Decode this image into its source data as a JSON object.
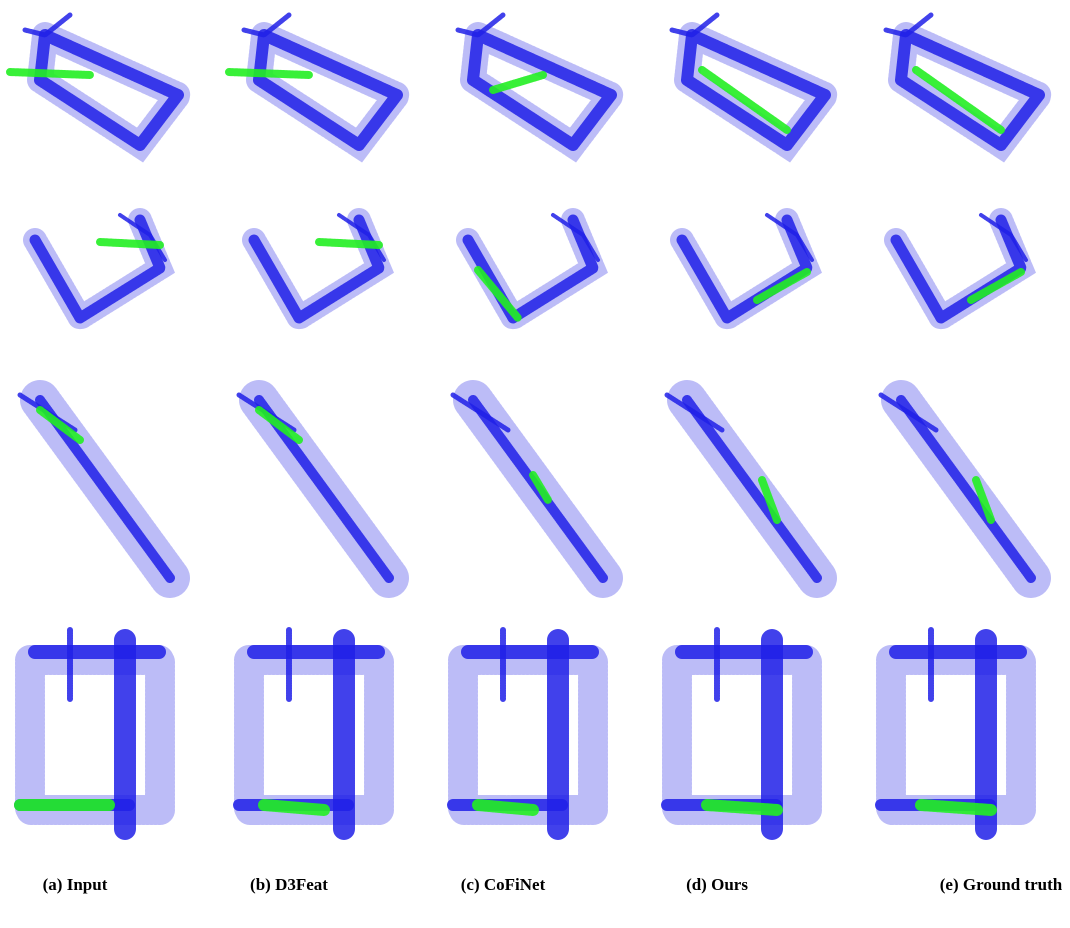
{
  "captions": [
    "(a) Input",
    "(b) D3Feat",
    "(c) CoFiNet",
    "(d) Ours",
    "(e) Ground truth"
  ]
}
